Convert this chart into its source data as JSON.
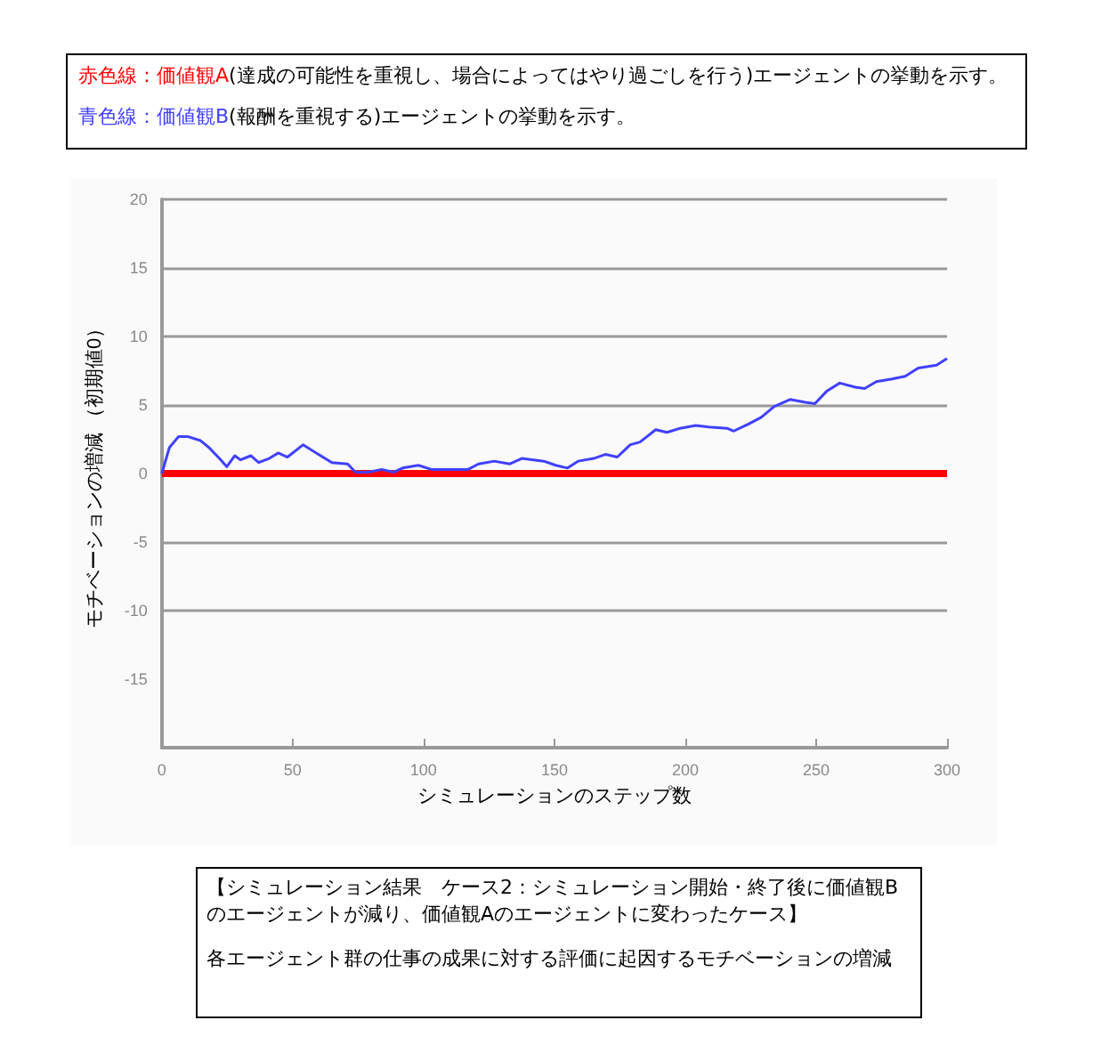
{
  "chart_data": {
    "type": "line",
    "xlabel": "シミュレーションのステップ数",
    "ylabel": "モチベーションの増減 （初期値0）",
    "annotations": [
      "(達成の可能性を重視し、場合によってはやり過ごしを行う)エージェントの挙動を示す。",
      "(報酬を重視する)エージェントの挙動を示す。",
      "【シミュレーション結果　ケース2：シミュレーション開始・終了後に価値観Bのエージェントが減り、価値観Aのエージェントに変わったケース】",
      "各エージェント群の仕事の成果に対する評価に起因するモチベーションの増減"
    ],
    "xlim": [
      0,
      300
    ],
    "xticks": [
      0,
      50,
      100,
      150,
      200,
      250,
      300
    ],
    "ylim": [
      -20,
      20
    ],
    "yticks": [
      -15,
      -10,
      -5,
      0,
      5,
      10,
      15,
      20
    ],
    "grid": "y",
    "series": [
      {
        "name": "赤色線：価値観A",
        "color": "#ff0000",
        "x": [
          0,
          300
        ],
        "values": [
          0,
          0
        ]
      },
      {
        "name": "青色線：価値観B",
        "color": "#4040ff",
        "x": [
          0,
          2.9,
          6.4,
          9.8,
          14.8,
          18,
          22,
          24.8,
          27.9,
          30,
          34,
          37,
          41,
          44.5,
          48,
          54,
          59,
          65,
          71,
          74,
          79,
          84,
          88.6,
          92,
          98,
          103,
          112,
          117,
          121,
          127,
          133,
          137.5,
          146,
          150.5,
          155,
          159,
          165,
          169.6,
          174,
          179,
          182.7,
          188.7,
          193,
          198,
          204,
          209,
          216,
          218.5,
          224,
          229,
          234,
          240,
          245.9,
          249.5,
          254,
          259,
          265,
          268.5,
          273,
          279,
          284,
          289,
          296,
          300
        ],
        "values": [
          0,
          1.9,
          2.7,
          2.7,
          2.4,
          1.9,
          1.1,
          0.5,
          1.3,
          1.0,
          1.3,
          0.8,
          1.1,
          1.5,
          1.2,
          2.1,
          1.5,
          0.8,
          0.7,
          0.1,
          0.1,
          0.3,
          0.1,
          0.4,
          0.6,
          0.3,
          0.3,
          0.3,
          0.7,
          0.9,
          0.7,
          1.1,
          0.9,
          0.6,
          0.4,
          0.9,
          1.1,
          1.4,
          1.2,
          2.1,
          2.3,
          3.2,
          3.0,
          3.3,
          3.5,
          3.4,
          3.3,
          3.1,
          3.6,
          4.1,
          4.9,
          5.4,
          5.2,
          5.1,
          6.0,
          6.6,
          6.3,
          6.2,
          6.7,
          6.9,
          7.1,
          7.7,
          7.9,
          8.4
        ]
      }
    ]
  }
}
